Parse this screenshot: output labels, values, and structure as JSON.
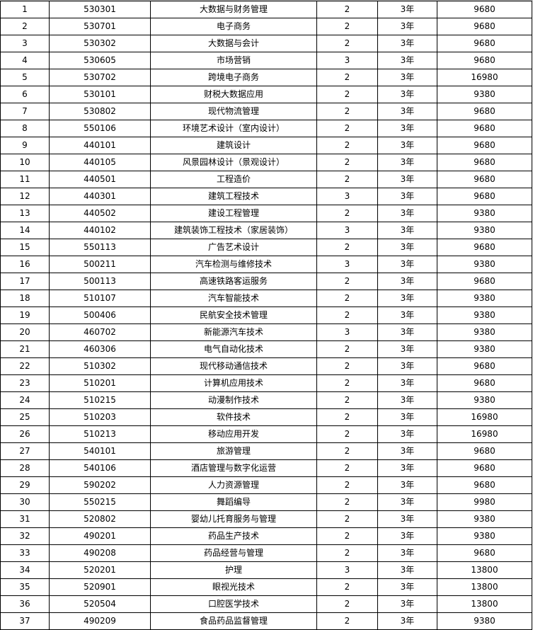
{
  "rows": [
    [
      "1",
      "530301",
      "大数据与财务管理",
      "2",
      "3年",
      "9680"
    ],
    [
      "2",
      "530701",
      "电子商务",
      "2",
      "3年",
      "9680"
    ],
    [
      "3",
      "530302",
      "大数据与会计",
      "2",
      "3年",
      "9680"
    ],
    [
      "4",
      "530605",
      "市场营销",
      "3",
      "3年",
      "9680"
    ],
    [
      "5",
      "530702",
      "跨境电子商务",
      "2",
      "3年",
      "16980"
    ],
    [
      "6",
      "530101",
      "财税大数据应用",
      "2",
      "3年",
      "9380"
    ],
    [
      "7",
      "530802",
      "现代物流管理",
      "2",
      "3年",
      "9680"
    ],
    [
      "8",
      "550106",
      "环境艺术设计（室内设计）",
      "2",
      "3年",
      "9680"
    ],
    [
      "9",
      "440101",
      "建筑设计",
      "2",
      "3年",
      "9680"
    ],
    [
      "10",
      "440105",
      "风景园林设计（景观设计）",
      "2",
      "3年",
      "9680"
    ],
    [
      "11",
      "440501",
      "工程造价",
      "2",
      "3年",
      "9680"
    ],
    [
      "12",
      "440301",
      "建筑工程技术",
      "3",
      "3年",
      "9680"
    ],
    [
      "13",
      "440502",
      "建设工程管理",
      "2",
      "3年",
      "9380"
    ],
    [
      "14",
      "440102",
      "建筑装饰工程技术（家居装饰）",
      "3",
      "3年",
      "9380"
    ],
    [
      "15",
      "550113",
      "广告艺术设计",
      "2",
      "3年",
      "9680"
    ],
    [
      "16",
      "500211",
      "汽车检测与维修技术",
      "3",
      "3年",
      "9380"
    ],
    [
      "17",
      "500113",
      "高速铁路客运服务",
      "2",
      "3年",
      "9680"
    ],
    [
      "18",
      "510107",
      "汽车智能技术",
      "2",
      "3年",
      "9380"
    ],
    [
      "19",
      "500406",
      "民航安全技术管理",
      "2",
      "3年",
      "9380"
    ],
    [
      "20",
      "460702",
      "新能源汽车技术",
      "3",
      "3年",
      "9380"
    ],
    [
      "21",
      "460306",
      "电气自动化技术",
      "2",
      "3年",
      "9380"
    ],
    [
      "22",
      "510302",
      "现代移动通信技术",
      "2",
      "3年",
      "9680"
    ],
    [
      "23",
      "510201",
      "计算机应用技术",
      "2",
      "3年",
      "9680"
    ],
    [
      "24",
      "510215",
      "动漫制作技术",
      "2",
      "3年",
      "9380"
    ],
    [
      "25",
      "510203",
      "软件技术",
      "2",
      "3年",
      "16980"
    ],
    [
      "26",
      "510213",
      "移动应用开发",
      "2",
      "3年",
      "16980"
    ],
    [
      "27",
      "540101",
      "旅游管理",
      "2",
      "3年",
      "9680"
    ],
    [
      "28",
      "540106",
      "酒店管理与数字化运营",
      "2",
      "3年",
      "9680"
    ],
    [
      "29",
      "590202",
      "人力资源管理",
      "2",
      "3年",
      "9680"
    ],
    [
      "30",
      "550215",
      "舞蹈编导",
      "2",
      "3年",
      "9980"
    ],
    [
      "31",
      "520802",
      "婴幼儿托育服务与管理",
      "2",
      "3年",
      "9380"
    ],
    [
      "32",
      "490201",
      "药品生产技术",
      "2",
      "3年",
      "9380"
    ],
    [
      "33",
      "490208",
      "药品经营与管理",
      "2",
      "3年",
      "9680"
    ],
    [
      "34",
      "520201",
      "护理",
      "3",
      "3年",
      "13800"
    ],
    [
      "35",
      "520901",
      "眼视光技术",
      "2",
      "3年",
      "13800"
    ],
    [
      "36",
      "520504",
      "口腔医学技术",
      "2",
      "3年",
      "13800"
    ],
    [
      "37",
      "490209",
      "食品药品监督管理",
      "2",
      "3年",
      "9380"
    ]
  ]
}
